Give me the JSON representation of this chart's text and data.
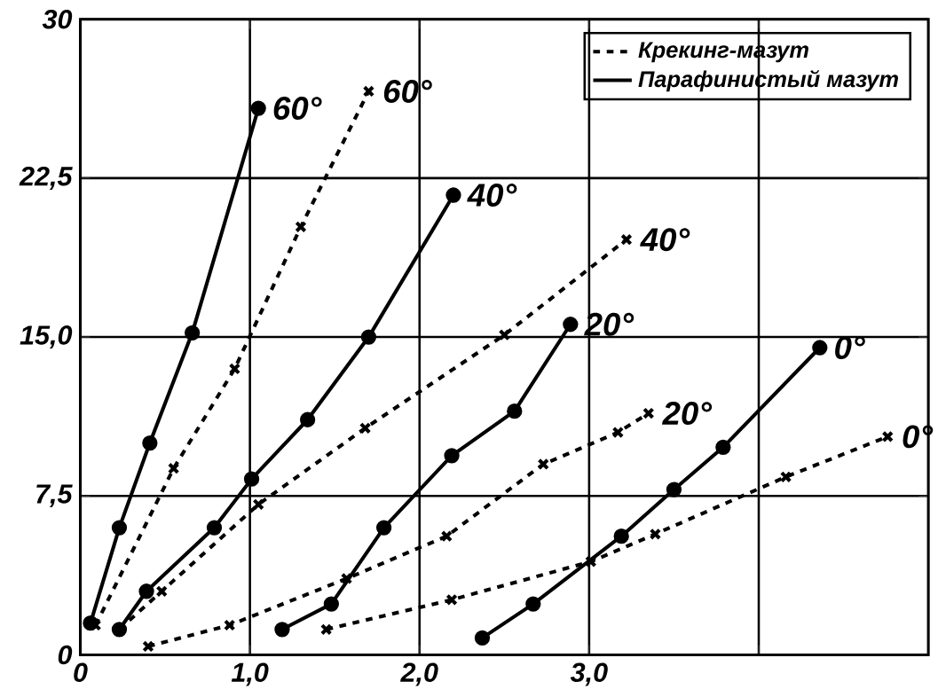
{
  "chart_data": {
    "type": "line",
    "xlim": [
      0,
      5
    ],
    "ylim": [
      0,
      30
    ],
    "xticks": [
      0,
      {
        "value": 1,
        "label": "1,0"
      },
      {
        "value": 2,
        "label": "2,0"
      },
      {
        "value": 3,
        "label": "3,0"
      },
      {
        "value": 4,
        "label": null
      }
    ],
    "yticks": [
      0,
      {
        "value": 7.5,
        "label": "7,5"
      },
      {
        "value": 15,
        "label": "15,0"
      },
      {
        "value": 22.5,
        "label": "22,5"
      },
      30
    ],
    "grid": true,
    "legend": "top right",
    "annotations": [
      "Крекинг-мазут",
      "Парафинистый мазут"
    ],
    "series": [
      {
        "name": "60°",
        "color": "#000000",
        "line_style": "solid",
        "marker": "circle",
        "x": [
          0.06,
          0.23,
          0.41,
          0.66,
          1.05
        ],
        "values": [
          1.5,
          6.0,
          10.0,
          15.2,
          25.8
        ]
      },
      {
        "name": "60°",
        "color": "#000000",
        "line_style": "dashed",
        "marker": "cross",
        "x": [
          0.09,
          0.55,
          0.91,
          1.3,
          1.7
        ],
        "values": [
          1.4,
          8.8,
          13.5,
          20.2,
          26.6
        ]
      },
      {
        "name": "40°",
        "color": "#000000",
        "line_style": "solid",
        "marker": "circle",
        "x": [
          0.23,
          0.39,
          0.79,
          1.01,
          1.34,
          1.7,
          2.2
        ],
        "values": [
          1.2,
          3.0,
          6.0,
          8.3,
          11.1,
          15.0,
          21.7
        ]
      },
      {
        "name": "40°",
        "color": "#000000",
        "line_style": "dashed",
        "marker": "cross",
        "x": [
          0.23,
          0.48,
          1.05,
          1.68,
          2.5,
          3.22
        ],
        "values": [
          1.2,
          3.0,
          7.1,
          10.7,
          15.1,
          19.6
        ]
      },
      {
        "name": "20°",
        "color": "#000000",
        "line_style": "solid",
        "marker": "circle",
        "x": [
          1.19,
          1.48,
          1.79,
          2.19,
          2.56,
          2.89
        ],
        "values": [
          1.2,
          2.4,
          6.0,
          9.4,
          11.5,
          15.6
        ]
      },
      {
        "name": "20°",
        "color": "#000000",
        "line_style": "dashed",
        "marker": "cross",
        "x": [
          0.4,
          0.88,
          1.57,
          2.16,
          2.73,
          3.17,
          3.35
        ],
        "values": [
          0.4,
          1.4,
          3.6,
          5.6,
          9.0,
          10.5,
          11.4
        ]
      },
      {
        "name": "0°",
        "color": "#000000",
        "line_style": "solid",
        "marker": "circle",
        "x": [
          2.37,
          2.67,
          3.19,
          3.5,
          3.79,
          4.36
        ],
        "values": [
          0.8,
          2.4,
          5.6,
          7.8,
          9.8,
          14.5
        ]
      },
      {
        "name": "0°",
        "color": "#000000",
        "line_style": "dashed",
        "marker": "cross",
        "x": [
          1.45,
          2.19,
          3.01,
          3.39,
          4.16,
          4.76
        ],
        "values": [
          1.2,
          2.6,
          4.4,
          5.7,
          8.4,
          10.3
        ]
      }
    ]
  }
}
